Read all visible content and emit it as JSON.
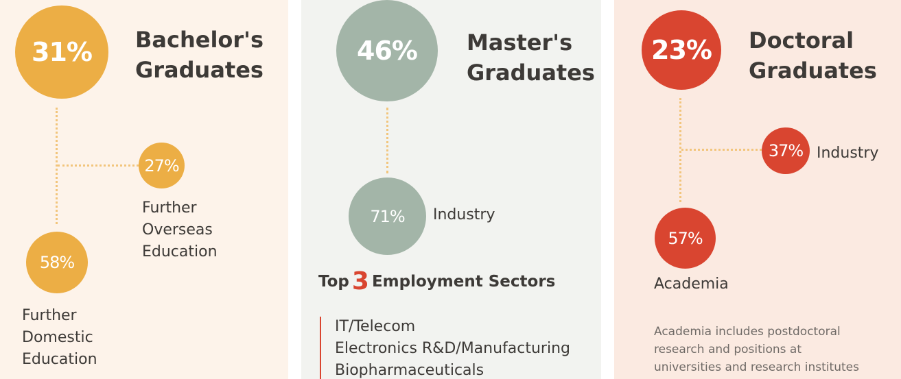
{
  "colors": {
    "bachelor_accent": "#ecae45",
    "master_accent": "#a3b5a8",
    "doctoral_accent": "#d94530",
    "connector": "#f2c57c"
  },
  "bachelor": {
    "percent": "31%",
    "title_line1": "Bachelor's",
    "title_line2": "Graduates",
    "overseas": {
      "percent": "27%",
      "label_lines": [
        "Further",
        "Overseas",
        "Education"
      ]
    },
    "domestic": {
      "percent": "58%",
      "label_lines": [
        "Further",
        "Domestic",
        "Education"
      ]
    }
  },
  "master": {
    "percent": "46%",
    "title_line1": "Master's",
    "title_line2": "Graduates",
    "industry": {
      "percent": "71%",
      "label": "Industry"
    },
    "top_sectors": {
      "prefix": "Top",
      "number": "3",
      "suffix": "Employment Sectors",
      "items": [
        "IT/Telecom",
        "Electronics R&D/Manufacturing",
        "Biopharmaceuticals"
      ]
    }
  },
  "doctoral": {
    "percent": "23%",
    "title_line1": "Doctoral",
    "title_line2": "Graduates",
    "industry": {
      "percent": "37%",
      "label": "Industry"
    },
    "academia": {
      "percent": "57%",
      "label": "Academia"
    },
    "note_lines": [
      "Academia includes postdoctoral",
      "research and positions at",
      "universities and research institutes"
    ]
  }
}
